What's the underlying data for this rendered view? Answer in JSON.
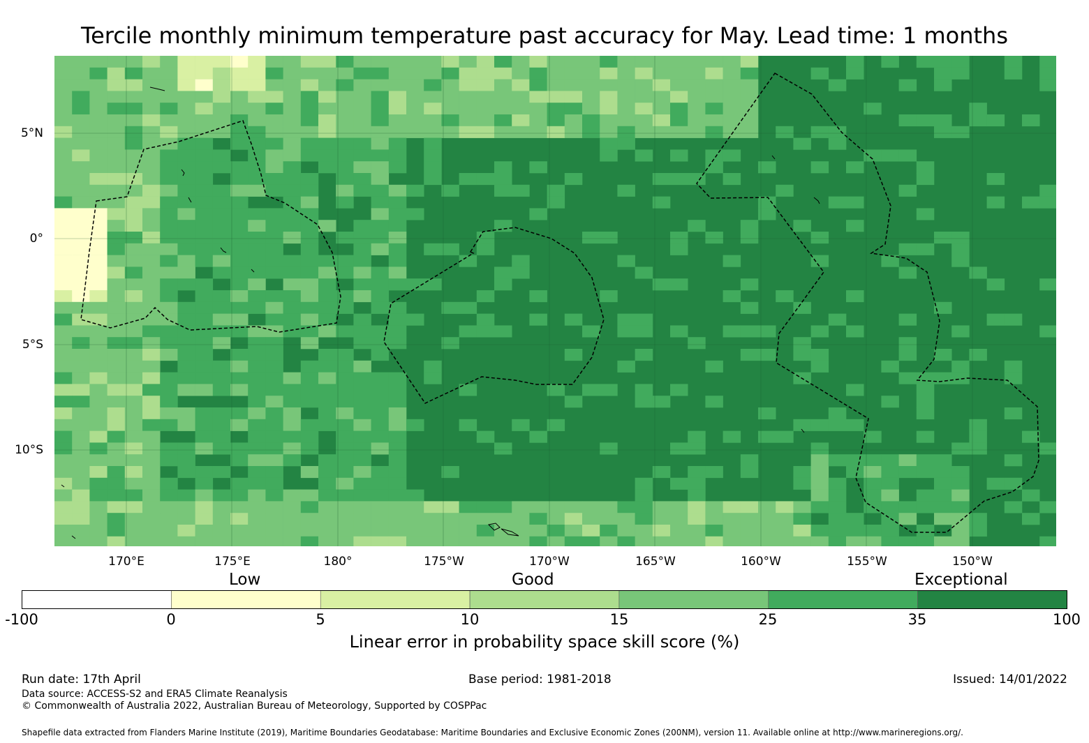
{
  "title": "Tercile monthly minimum temperature past accuracy for May. Lead time: 1 months",
  "map": {
    "lat_labels": [
      "5°N",
      "0°",
      "5°S",
      "10°S"
    ],
    "lon_labels": [
      "170°E",
      "175°E",
      "180°",
      "175°W",
      "170°W",
      "165°W",
      "160°W",
      "155°W",
      "150°W"
    ],
    "field_note": "Skill field: mostly dark green (35-100) in central/eastern areas, lighter greens in the west and near the edges, pale yellow patch at the far western equator."
  },
  "legend": {
    "categories": [
      "Low",
      "Good",
      "Exceptional"
    ],
    "ticks": [
      "-100",
      "0",
      "5",
      "10",
      "15",
      "25",
      "35",
      "100"
    ],
    "colors": [
      "#ffffff",
      "#ffffcc",
      "#d9f0a3",
      "#addd8e",
      "#78c679",
      "#41ab5d",
      "#238443"
    ],
    "label": "Linear error in probability space skill score (%)"
  },
  "footer": {
    "run_date": "Run date: 17th April",
    "base_period": "Base period: 1981-2018",
    "issued": "Issued: 14/01/2022",
    "data_source": "Data source: ACCESS-S2 and ERA5 Climate Reanalysis",
    "copyright": "© Commonwealth of Australia 2022, Australian Bureau of Meteorology, Supported by COSPPac",
    "shapefile": "Shapefile data extracted from Flanders Marine Institute (2019), Maritime Boundaries Geodatabase: Maritime Boundaries and Exclusive Economic Zones (200NM), version 11. Available online at http://www.marineregions.org/."
  }
}
